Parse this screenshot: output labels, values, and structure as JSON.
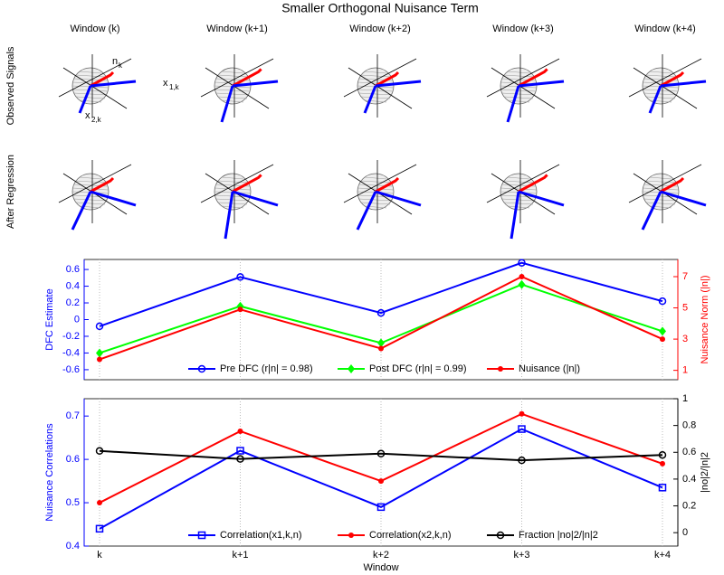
{
  "title": "Smaller Orthogonal Nuisance Term",
  "windows": [
    "Window (k)",
    "Window (k+1)",
    "Window (k+2)",
    "Window (k+3)",
    "Window (k+4)"
  ],
  "row_labels": [
    "Observed Signals",
    "After Regression"
  ],
  "annotations": {
    "n": "n",
    "n_sub": "k",
    "x1": "x",
    "x1_sub": "1,k",
    "x2": "x",
    "x2_sub": "2,k"
  },
  "chart_data": [
    {
      "type": "line",
      "categories": [
        "k",
        "k+1",
        "k+2",
        "k+3",
        "k+4"
      ],
      "ylabel": "DFC Estimate",
      "y2label": "Nuisance Norm (|n|)",
      "ylim": [
        -0.72,
        0.72
      ],
      "yticks": [
        -0.6,
        -0.4,
        -0.2,
        0,
        0.2,
        0.4,
        0.6
      ],
      "y2lim": [
        0.4,
        8.1
      ],
      "y2ticks": [
        1,
        3,
        5,
        7
      ],
      "ycolor": "#0000ff",
      "y2color": "#ff0000",
      "grid": true,
      "series": [
        {
          "name": "Pre DFC (r|n| = 0.98)",
          "color": "#0000ff",
          "marker": "circle",
          "values": [
            -0.08,
            0.51,
            0.08,
            0.68,
            0.22
          ]
        },
        {
          "name": "Post DFC (r|n| = 0.99)",
          "color": "#00ff00",
          "marker": "diamond",
          "values": [
            -0.4,
            0.16,
            -0.28,
            0.42,
            -0.14
          ]
        },
        {
          "name": "Nuisance (|n|)",
          "color": "#ff0000",
          "marker": "dot",
          "axis": "y2",
          "values": [
            1.7,
            4.9,
            2.4,
            7.0,
            3.0
          ]
        }
      ]
    },
    {
      "type": "line",
      "categories": [
        "k",
        "k+1",
        "k+2",
        "k+3",
        "k+4"
      ],
      "xlabel": "Window",
      "ylabel": "Nuisance Correlations",
      "y2label": "|no|2/|n|2",
      "ylim": [
        0.4,
        0.74
      ],
      "yticks": [
        0.4,
        0.5,
        0.6,
        0.7
      ],
      "y2lim": [
        -0.1,
        1
      ],
      "y2ticks": [
        0,
        0.2,
        0.4,
        0.6,
        0.8,
        1
      ],
      "ycolor": "#0000ff",
      "y2color": "#000000",
      "grid": true,
      "series": [
        {
          "name": "Correlation(x1,k,n)",
          "color": "#0000ff",
          "marker": "square",
          "values": [
            0.44,
            0.62,
            0.49,
            0.67,
            0.535
          ]
        },
        {
          "name": "Correlation(x2,k,n)",
          "color": "#ff0000",
          "marker": "dot",
          "values": [
            0.5,
            0.665,
            0.55,
            0.705,
            0.59
          ]
        },
        {
          "name": "Fraction |no|2/|n|2",
          "color": "#000000",
          "marker": "circle",
          "axis": "y2",
          "values": [
            0.61,
            0.55,
            0.59,
            0.54,
            0.58
          ]
        }
      ]
    }
  ]
}
